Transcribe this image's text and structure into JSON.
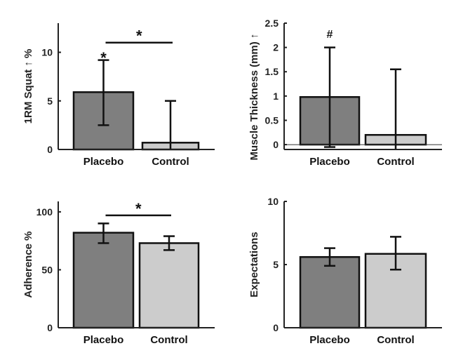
{
  "chart_data": [
    {
      "type": "bar",
      "ylabel": "1RM Squat ↑ %",
      "categories": [
        "Placebo",
        "Control"
      ],
      "values": [
        5.9,
        0.7
      ],
      "error_low": [
        2.5,
        0
      ],
      "error_high": [
        9.2,
        5.0
      ],
      "ylim": [
        0,
        13
      ],
      "yticks": [
        0,
        5,
        10
      ],
      "colors": [
        "#7f7f7f",
        "#cccccc"
      ],
      "annotations": [
        {
          "text": "*",
          "type": "above-bar",
          "bar": 0,
          "y": 9.6
        },
        {
          "text": "*",
          "type": "bracket",
          "from": 0,
          "to": 1,
          "y": 11
        }
      ]
    },
    {
      "type": "bar",
      "ylabel": "Muscle Thickness (mm) ↑",
      "categories": [
        "Placebo",
        "Control"
      ],
      "values": [
        0.98,
        0.2
      ],
      "error_low": [
        -0.05,
        -0.1
      ],
      "error_high": [
        2.0,
        1.55
      ],
      "ylim": [
        -0.1,
        2.5
      ],
      "yticks": [
        0,
        0.5,
        1,
        1.5,
        2,
        2.5
      ],
      "zero_line": true,
      "colors": [
        "#7f7f7f",
        "#cccccc"
      ],
      "annotations": [
        {
          "text": "#",
          "type": "above-bar",
          "bar": 0,
          "y": 2.2
        }
      ]
    },
    {
      "type": "bar",
      "ylabel": "Adherence %",
      "categories": [
        "Placebo",
        "Control"
      ],
      "values": [
        82,
        73
      ],
      "error_low": [
        73,
        67
      ],
      "error_high": [
        90,
        79
      ],
      "ylim": [
        0,
        109
      ],
      "yticks": [
        0,
        50,
        100
      ],
      "colors": [
        "#7f7f7f",
        "#cccccc"
      ],
      "annotations": [
        {
          "text": "*",
          "type": "bracket",
          "from": 0,
          "to": 1,
          "y": 97
        }
      ]
    },
    {
      "type": "bar",
      "ylabel": "Expectations",
      "categories": [
        "Placebo",
        "Control"
      ],
      "values": [
        5.6,
        5.85
      ],
      "error_low": [
        4.9,
        4.6
      ],
      "error_high": [
        6.3,
        7.2
      ],
      "ylim": [
        0,
        10
      ],
      "yticks": [
        0,
        5,
        10
      ],
      "colors": [
        "#7f7f7f",
        "#cccccc"
      ],
      "annotations": []
    }
  ]
}
